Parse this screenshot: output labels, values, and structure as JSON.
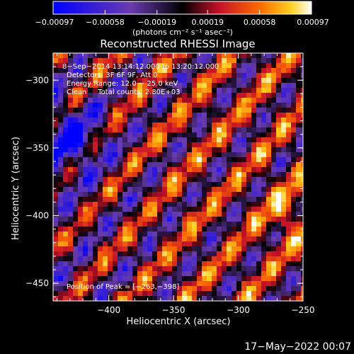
{
  "chart_data": {
    "type": "heatmap",
    "title": "Reconstructed RHESSI Image",
    "xlabel": "Heliocentric X (arcsec)",
    "ylabel": "Heliocentric Y (arcsec)",
    "xlim": [
      -443,
      -250
    ],
    "ylim": [
      -463,
      -280
    ],
    "xticks": [
      -400,
      -350,
      -300,
      -250
    ],
    "yticks": [
      -300,
      -350,
      -400,
      -450
    ],
    "xtick_labels": [
      "−400",
      "−350",
      "−300",
      "−250"
    ],
    "ytick_labels": [
      "−300",
      "−350",
      "−400",
      "−450"
    ],
    "colorbar": {
      "colormap": "hot-cold (blue-purple-black-red-yellow-white)",
      "vmin": -0.00097,
      "vmax": 0.00097,
      "tick_values": [
        -0.00097,
        -0.00058,
        -0.00019,
        0.00019,
        0.00058,
        0.00097
      ],
      "tick_labels": [
        "−0.00097",
        "−0.00058",
        "−0.00019",
        "0.00019",
        "0.00058",
        "0.00097"
      ],
      "unit_label": "(photons cm⁻² s⁻¹ asec⁻²)"
    },
    "annotations": [
      "8−Sep−2014 13:14:12.000 to 13:20:12.000",
      "Detectors: 3F 6F 9F, Att 0",
      "Energy Range: 12.0 − 25.0 keV",
      "Clean     Total counts: 2.80E+03"
    ],
    "peak_label": "Position of Peak = [−263,−398]",
    "peak_position": [
      -263,
      -398
    ],
    "pattern": "diagonal fringe stripes, mostly positive flux, negative (blue) region near x=-430, y=-345",
    "grid": false
  },
  "timestamp": "17−May−2022 00:07",
  "colors": {
    "background": "#000000",
    "foreground": "#ffffff",
    "stops": [
      "#0000ff",
      "#6a3bb0",
      "#000000",
      "#c4102a",
      "#ff6a00",
      "#ffd020",
      "#ffffff"
    ]
  }
}
